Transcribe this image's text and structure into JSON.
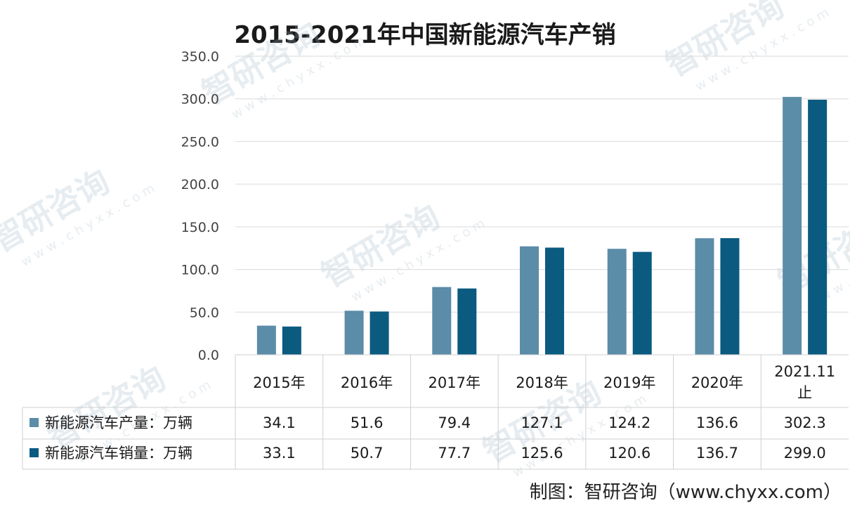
{
  "title": "2015-2021年中国新能源汽车产销",
  "credit": "制图：智研咨询（www.chyxx.com）",
  "watermark": {
    "name": "智研咨询",
    "url": "w w w . c h y x x . c o m"
  },
  "colors": {
    "production": "#5b8ca8",
    "sales": "#0b5a80",
    "grid": "#d9d9d9",
    "text": "#1a1a1a"
  },
  "chart_data": {
    "type": "bar",
    "title": "2015-2021年中国新能源汽车产销",
    "categories": [
      "2015年",
      "2016年",
      "2017年",
      "2018年",
      "2019年",
      "2020年",
      "2021.11\n止"
    ],
    "series": [
      {
        "name": "新能源汽车产量：万辆",
        "values": [
          34.1,
          51.6,
          79.4,
          127.1,
          124.2,
          136.6,
          302.3
        ],
        "labels": [
          "34.1",
          "51.6",
          "79.4",
          "127.1",
          "124.2",
          "136.6",
          "302.3"
        ]
      },
      {
        "name": "新能源汽车销量：万辆",
        "values": [
          33.1,
          50.7,
          77.7,
          125.6,
          120.6,
          136.7,
          299.0
        ],
        "labels": [
          "33.1",
          "50.7",
          "77.7",
          "125.6",
          "120.6",
          "136.7",
          "299.0"
        ]
      }
    ],
    "ylim": [
      0,
      350
    ],
    "yticks": [
      "0.0",
      "50.0",
      "100.0",
      "150.0",
      "200.0",
      "250.0",
      "300.0",
      "350.0"
    ],
    "grid": true,
    "legend": "data-table-left"
  }
}
